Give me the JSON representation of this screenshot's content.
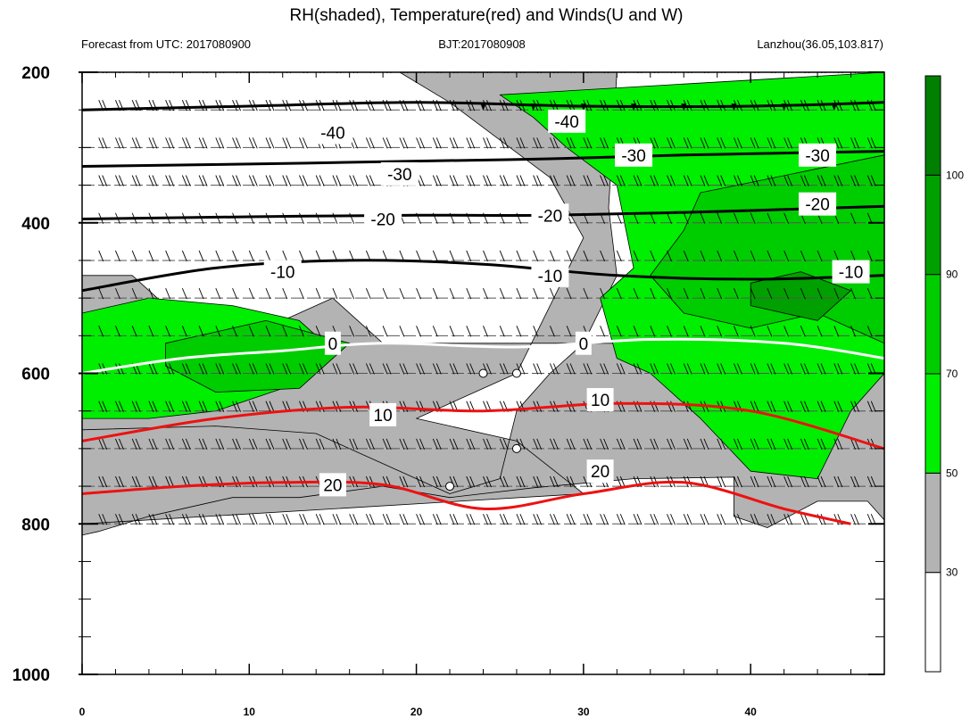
{
  "title": "RH(shaded), Temperature(red) and Winds(U and W)",
  "subtitle_left": "Forecast from UTC: 2017080900",
  "subtitle_center": "BJT:2017080908",
  "subtitle_right": "Lanzhou(36.05,103.817)",
  "colors": {
    "rh_bins": [
      "#ffffff",
      "#b3b3b3",
      "#00ee00",
      "#00cd00",
      "#00a000",
      "#007f00"
    ],
    "temp_line": "#ee1111",
    "neg_temp_line": "#000000",
    "zero_line": "#ffffff",
    "wind_barb": "#000000"
  },
  "chart_data": {
    "type": "heatmap",
    "x_axis": {
      "range": [
        0,
        48
      ],
      "ticks": [
        0,
        10,
        20,
        30,
        40
      ],
      "tick_labels": [
        "0",
        "10",
        "20",
        "30",
        "40"
      ],
      "minor_step": 2
    },
    "y_axis": {
      "range": [
        200,
        1000
      ],
      "reversed": true,
      "ticks": [
        200,
        400,
        600,
        800,
        1000
      ],
      "tick_labels": [
        "200",
        "400",
        "600",
        "800",
        "1000"
      ],
      "minor_step": 50
    },
    "levels": [
      200,
      250,
      300,
      350,
      400,
      450,
      500,
      550,
      600,
      650,
      700,
      750,
      800
    ],
    "rh_colorbar": {
      "thresholds": [
        30,
        50,
        70,
        90,
        100
      ],
      "labels": [
        "30",
        "50",
        "70",
        "90",
        "100"
      ]
    },
    "rh_regions": [
      {
        "bin": 1,
        "pts": [
          [
            19,
            200
          ],
          [
            32,
            200
          ],
          [
            31.5,
            380
          ],
          [
            32,
            470
          ],
          [
            30,
            560
          ],
          [
            28,
            600
          ],
          [
            26,
            650
          ],
          [
            25,
            740
          ],
          [
            22,
            760
          ],
          [
            18,
            720
          ],
          [
            14,
            680
          ],
          [
            8,
            670
          ],
          [
            0,
            675
          ],
          [
            0,
            815
          ],
          [
            1,
            810
          ],
          [
            4,
            790
          ],
          [
            9,
            765
          ],
          [
            13,
            765
          ],
          [
            18,
            750
          ],
          [
            22,
            765
          ],
          [
            27,
            752
          ],
          [
            33,
            740
          ],
          [
            39,
            738
          ],
          [
            39,
            790
          ],
          [
            41,
            805
          ],
          [
            44,
            770
          ],
          [
            47,
            770
          ],
          [
            48,
            795
          ],
          [
            48,
            520
          ],
          [
            44,
            580
          ],
          [
            40,
            580
          ],
          [
            36,
            590
          ],
          [
            34,
            560
          ],
          [
            26,
            560
          ],
          [
            18,
            560
          ],
          [
            15,
            500
          ],
          [
            12,
            530
          ],
          [
            6,
            530
          ],
          [
            3,
            470
          ],
          [
            0,
            470
          ],
          [
            0,
            800
          ],
          [
            30,
            760
          ],
          [
            26,
            690
          ],
          [
            20,
            660
          ],
          [
            26,
            600
          ],
          [
            30,
            420
          ],
          [
            28,
            340
          ],
          [
            22,
            240
          ],
          [
            19,
            200
          ]
        ]
      },
      {
        "bin": 2,
        "pts": [
          [
            25,
            230
          ],
          [
            48,
            200
          ],
          [
            48,
            600
          ],
          [
            46,
            650
          ],
          [
            44,
            740
          ],
          [
            40,
            730
          ],
          [
            37,
            660
          ],
          [
            34,
            600
          ],
          [
            32,
            580
          ],
          [
            31,
            500
          ],
          [
            33,
            460
          ],
          [
            32,
            350
          ],
          [
            29,
            300
          ],
          [
            27,
            260
          ]
        ]
      },
      {
        "bin": 2,
        "pts": [
          [
            0,
            520
          ],
          [
            4,
            500
          ],
          [
            9,
            510
          ],
          [
            13,
            530
          ],
          [
            15,
            570
          ],
          [
            12,
            620
          ],
          [
            8,
            650
          ],
          [
            4,
            660
          ],
          [
            0,
            660
          ]
        ]
      },
      {
        "bin": 3,
        "pts": [
          [
            37,
            360
          ],
          [
            48,
            310
          ],
          [
            48,
            560
          ],
          [
            44,
            520
          ],
          [
            40,
            540
          ],
          [
            36,
            520
          ],
          [
            34,
            470
          ],
          [
            36,
            410
          ]
        ]
      },
      {
        "bin": 3,
        "pts": [
          [
            5,
            560
          ],
          [
            11,
            530
          ],
          [
            16,
            560
          ],
          [
            13,
            620
          ],
          [
            8,
            625
          ],
          [
            5,
            590
          ]
        ]
      },
      {
        "bin": 4,
        "pts": [
          [
            40,
            480
          ],
          [
            43,
            465
          ],
          [
            46,
            490
          ],
          [
            44,
            530
          ],
          [
            40,
            510
          ]
        ]
      }
    ],
    "temp_contours": [
      {
        "value": -40,
        "pts": [
          [
            0,
            250
          ],
          [
            10,
            245
          ],
          [
            20,
            240
          ],
          [
            30,
            245
          ],
          [
            40,
            245
          ],
          [
            48,
            240
          ]
        ]
      },
      {
        "value": -30,
        "pts": [
          [
            0,
            325
          ],
          [
            10,
            322
          ],
          [
            20,
            318
          ],
          [
            28,
            315
          ],
          [
            36,
            310
          ],
          [
            48,
            305
          ]
        ]
      },
      {
        "value": -20,
        "pts": [
          [
            0,
            395
          ],
          [
            10,
            392
          ],
          [
            20,
            390
          ],
          [
            28,
            390
          ],
          [
            38,
            385
          ],
          [
            48,
            378
          ]
        ]
      },
      {
        "value": -10,
        "pts": [
          [
            0,
            490
          ],
          [
            8,
            460
          ],
          [
            16,
            450
          ],
          [
            24,
            455
          ],
          [
            32,
            470
          ],
          [
            40,
            475
          ],
          [
            48,
            470
          ]
        ]
      },
      {
        "value": 0,
        "pts": [
          [
            0,
            600
          ],
          [
            6,
            580
          ],
          [
            12,
            570
          ],
          [
            18,
            560
          ],
          [
            26,
            565
          ],
          [
            34,
            555
          ],
          [
            42,
            560
          ],
          [
            48,
            580
          ]
        ]
      },
      {
        "value": 10,
        "pts": [
          [
            0,
            690
          ],
          [
            8,
            660
          ],
          [
            16,
            645
          ],
          [
            24,
            650
          ],
          [
            32,
            640
          ],
          [
            40,
            650
          ],
          [
            48,
            700
          ]
        ]
      },
      {
        "value": 20,
        "pts": [
          [
            0,
            760
          ],
          [
            6,
            750
          ],
          [
            12,
            745
          ],
          [
            18,
            748
          ],
          [
            24,
            780
          ],
          [
            30,
            760
          ],
          [
            36,
            745
          ],
          [
            42,
            780
          ],
          [
            46,
            800
          ]
        ]
      }
    ],
    "temp_labels": [
      {
        "text": "-40",
        "x": 15,
        "y": 280
      },
      {
        "text": "-40",
        "x": 29,
        "y": 265
      },
      {
        "text": "-30",
        "x": 19,
        "y": 335
      },
      {
        "text": "-30",
        "x": 33,
        "y": 310
      },
      {
        "text": "-30",
        "x": 44,
        "y": 310
      },
      {
        "text": "-20",
        "x": 18,
        "y": 395
      },
      {
        "text": "-20",
        "x": 28,
        "y": 390
      },
      {
        "text": "-20",
        "x": 44,
        "y": 375
      },
      {
        "text": "-10",
        "x": 12,
        "y": 465
      },
      {
        "text": "-10",
        "x": 28,
        "y": 470
      },
      {
        "text": "-10",
        "x": 46,
        "y": 465
      },
      {
        "text": "0",
        "x": 15,
        "y": 560
      },
      {
        "text": "0",
        "x": 30,
        "y": 560
      },
      {
        "text": "10",
        "x": 18,
        "y": 655
      },
      {
        "text": "10",
        "x": 31,
        "y": 635
      },
      {
        "text": "20",
        "x": 15,
        "y": 748
      },
      {
        "text": "20",
        "x": 31,
        "y": 730
      }
    ],
    "calm_points": [
      [
        24,
        600
      ],
      [
        26,
        600
      ],
      [
        26,
        700
      ],
      [
        22,
        750
      ]
    ]
  }
}
